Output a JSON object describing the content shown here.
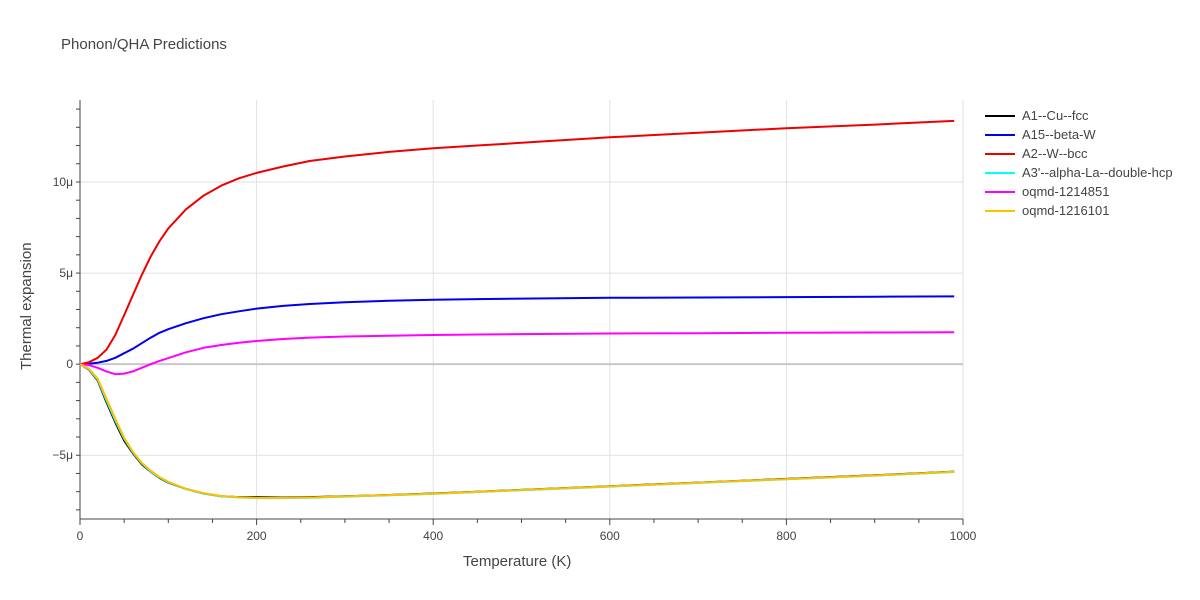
{
  "chart_data": {
    "type": "line",
    "title": "Phonon/QHA Predictions",
    "xlabel": "Temperature (K)",
    "ylabel": "Thermal expansion",
    "xlim": [
      0,
      1000
    ],
    "ylim": [
      -8.5,
      14.5
    ],
    "x_ticks": [
      0,
      200,
      400,
      600,
      800,
      1000
    ],
    "y_ticks": [
      {
        "value": -5,
        "label": "−5μ"
      },
      {
        "value": 0,
        "label": "0"
      },
      {
        "value": 5,
        "label": "5μ"
      },
      {
        "value": 10,
        "label": "10μ"
      }
    ],
    "grid": true,
    "legend_position": "right",
    "series": [
      {
        "name": "A1--Cu--fcc",
        "color": "#000000",
        "x": [
          0,
          10,
          20,
          30,
          40,
          50,
          60,
          70,
          80,
          90,
          100,
          120,
          140,
          160,
          180,
          200,
          230,
          260,
          300,
          350,
          400,
          450,
          500,
          600,
          700,
          800,
          900,
          990
        ],
        "y": [
          0,
          -0.3,
          -0.9,
          -2.1,
          -3.2,
          -4.2,
          -4.9,
          -5.5,
          -5.9,
          -6.25,
          -6.5,
          -6.85,
          -7.1,
          -7.25,
          -7.3,
          -7.3,
          -7.32,
          -7.3,
          -7.25,
          -7.18,
          -7.1,
          -7.0,
          -6.9,
          -6.7,
          -6.5,
          -6.3,
          -6.1,
          -5.9
        ]
      },
      {
        "name": "A15--beta-W",
        "color": "#0000ee",
        "x": [
          0,
          10,
          20,
          30,
          40,
          50,
          60,
          70,
          80,
          90,
          100,
          120,
          140,
          160,
          180,
          200,
          230,
          260,
          300,
          350,
          400,
          450,
          500,
          600,
          700,
          800,
          900,
          990
        ],
        "y": [
          0,
          0.02,
          0.08,
          0.18,
          0.35,
          0.6,
          0.85,
          1.15,
          1.45,
          1.72,
          1.92,
          2.25,
          2.52,
          2.74,
          2.9,
          3.05,
          3.2,
          3.3,
          3.4,
          3.48,
          3.53,
          3.57,
          3.6,
          3.64,
          3.66,
          3.68,
          3.7,
          3.72
        ]
      },
      {
        "name": "A2--W--bcc",
        "color": "#ee0000",
        "x": [
          0,
          10,
          20,
          30,
          40,
          50,
          60,
          70,
          80,
          90,
          100,
          120,
          140,
          160,
          180,
          200,
          230,
          260,
          300,
          350,
          400,
          450,
          500,
          600,
          700,
          800,
          900,
          990
        ],
        "y": [
          0,
          0.1,
          0.35,
          0.8,
          1.6,
          2.7,
          3.8,
          4.9,
          5.9,
          6.75,
          7.45,
          8.5,
          9.25,
          9.8,
          10.2,
          10.5,
          10.85,
          11.15,
          11.4,
          11.65,
          11.85,
          12.0,
          12.15,
          12.45,
          12.7,
          12.95,
          13.15,
          13.35
        ]
      },
      {
        "name": "A3'--alpha-La--double-hcp",
        "color": "#00ffff",
        "x": [
          0,
          10,
          20,
          30,
          40,
          50,
          60,
          70,
          80,
          90,
          100,
          120,
          140,
          160,
          180,
          200,
          230,
          260,
          300,
          350,
          400,
          450,
          500,
          600,
          700,
          800,
          900,
          990
        ],
        "y": [
          0,
          -0.28,
          -0.85,
          -2.0,
          -3.1,
          -4.1,
          -4.85,
          -5.45,
          -5.88,
          -6.22,
          -6.48,
          -6.85,
          -7.1,
          -7.25,
          -7.32,
          -7.35,
          -7.35,
          -7.33,
          -7.27,
          -7.2,
          -7.12,
          -7.02,
          -6.92,
          -6.72,
          -6.52,
          -6.32,
          -6.12,
          -5.92
        ]
      },
      {
        "name": "oqmd-1214851",
        "color": "#ff00ff",
        "x": [
          0,
          10,
          20,
          30,
          40,
          50,
          60,
          70,
          80,
          90,
          100,
          120,
          140,
          160,
          180,
          200,
          230,
          260,
          300,
          350,
          400,
          450,
          500,
          600,
          700,
          800,
          900,
          990
        ],
        "y": [
          0,
          -0.05,
          -0.2,
          -0.4,
          -0.55,
          -0.52,
          -0.4,
          -0.2,
          0.0,
          0.18,
          0.33,
          0.65,
          0.9,
          1.05,
          1.17,
          1.27,
          1.38,
          1.46,
          1.52,
          1.56,
          1.6,
          1.63,
          1.65,
          1.68,
          1.7,
          1.72,
          1.74,
          1.75
        ]
      },
      {
        "name": "oqmd-1216101",
        "color": "#ffc000",
        "x": [
          0,
          10,
          20,
          30,
          40,
          50,
          60,
          70,
          80,
          90,
          100,
          120,
          140,
          160,
          180,
          200,
          230,
          260,
          300,
          350,
          400,
          450,
          500,
          600,
          700,
          800,
          900,
          990
        ],
        "y": [
          0,
          -0.25,
          -0.8,
          -1.9,
          -3.0,
          -4.05,
          -4.82,
          -5.42,
          -5.85,
          -6.2,
          -6.46,
          -6.84,
          -7.08,
          -7.24,
          -7.31,
          -7.34,
          -7.34,
          -7.32,
          -7.26,
          -7.19,
          -7.11,
          -7.01,
          -6.91,
          -6.71,
          -6.51,
          -6.31,
          -6.11,
          -5.91
        ]
      }
    ]
  }
}
